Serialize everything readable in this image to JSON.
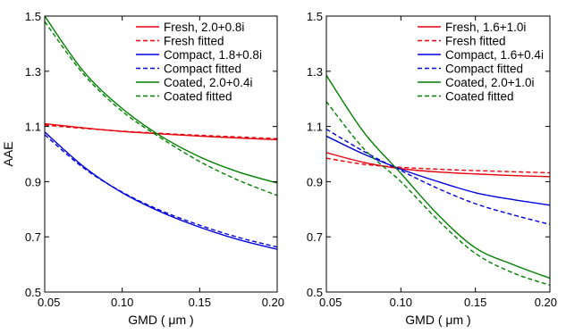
{
  "chart_data": [
    {
      "type": "line",
      "xlabel": "GMD ( μm )",
      "ylabel": "AAE",
      "xlim": [
        0.05,
        0.2
      ],
      "ylim": [
        0.5,
        1.5
      ],
      "xticks": [
        "0.05",
        "0.10",
        "0.15",
        "0.20"
      ],
      "yticks": [
        "0.5",
        "0.7",
        "0.9",
        "1.1",
        "1.3",
        "1.5"
      ],
      "grid": false,
      "legend_position": "top-right",
      "x": [
        0.05,
        0.075,
        0.1,
        0.125,
        0.15,
        0.175,
        0.2
      ],
      "series": [
        {
          "name": "Fresh, 2.0+0.8i",
          "color": "#e8000b",
          "dash": "solid",
          "values": [
            1.11,
            1.095,
            1.082,
            1.073,
            1.065,
            1.058,
            1.052
          ]
        },
        {
          "name": "Fresh fitted",
          "color": "#e8000b",
          "dash": "dashed",
          "values": [
            1.105,
            1.093,
            1.083,
            1.075,
            1.068,
            1.062,
            1.056
          ]
        },
        {
          "name": "Compact, 1.8+0.8i",
          "color": "#0000dd",
          "dash": "solid",
          "values": [
            1.08,
            0.955,
            0.86,
            0.79,
            0.735,
            0.69,
            0.655
          ]
        },
        {
          "name": "Compact fitted",
          "color": "#0000dd",
          "dash": "dashed",
          "values": [
            1.07,
            0.95,
            0.862,
            0.795,
            0.742,
            0.698,
            0.663
          ]
        },
        {
          "name": "Coated, 2.0+0.4i",
          "color": "#008000",
          "dash": "solid",
          "values": [
            1.5,
            1.3,
            1.165,
            1.065,
            0.99,
            0.935,
            0.895
          ]
        },
        {
          "name": "Coated fitted",
          "color": "#008000",
          "dash": "dashed",
          "values": [
            1.48,
            1.29,
            1.155,
            1.058,
            0.973,
            0.905,
            0.85
          ]
        }
      ]
    },
    {
      "type": "line",
      "xlabel": "GMD ( μm )",
      "ylabel": "",
      "xlim": [
        0.05,
        0.2
      ],
      "ylim": [
        0.5,
        1.5
      ],
      "xticks": [
        "0.05",
        "0.10",
        "0.15",
        "0.20"
      ],
      "yticks": [
        "0.5",
        "0.7",
        "0.9",
        "1.1",
        "1.3",
        "1.5"
      ],
      "grid": false,
      "legend_position": "top-right",
      "x": [
        0.05,
        0.075,
        0.1,
        0.125,
        0.15,
        0.175,
        0.2
      ],
      "series": [
        {
          "name": "Fresh, 1.6+1.0i",
          "color": "#e8000b",
          "dash": "solid",
          "values": [
            1.005,
            0.97,
            0.947,
            0.935,
            0.928,
            0.922,
            0.918
          ]
        },
        {
          "name": "Fresh fitted",
          "color": "#e8000b",
          "dash": "dashed",
          "values": [
            0.985,
            0.963,
            0.952,
            0.945,
            0.94,
            0.936,
            0.932
          ]
        },
        {
          "name": "Compact, 1.6+0.4i",
          "color": "#0000dd",
          "dash": "solid",
          "values": [
            1.065,
            1.0,
            0.945,
            0.9,
            0.86,
            0.835,
            0.815
          ]
        },
        {
          "name": "Compact fitted",
          "color": "#0000dd",
          "dash": "dashed",
          "values": [
            1.09,
            1.01,
            0.94,
            0.875,
            0.82,
            0.78,
            0.745
          ]
        },
        {
          "name": "Coated, 2.0+1.0i",
          "color": "#008000",
          "dash": "solid",
          "values": [
            1.285,
            1.08,
            0.93,
            0.78,
            0.66,
            0.6,
            0.55
          ]
        },
        {
          "name": "Coated fitted",
          "color": "#008000",
          "dash": "dashed",
          "values": [
            1.19,
            1.02,
            0.9,
            0.76,
            0.64,
            0.57,
            0.525
          ]
        }
      ]
    }
  ]
}
